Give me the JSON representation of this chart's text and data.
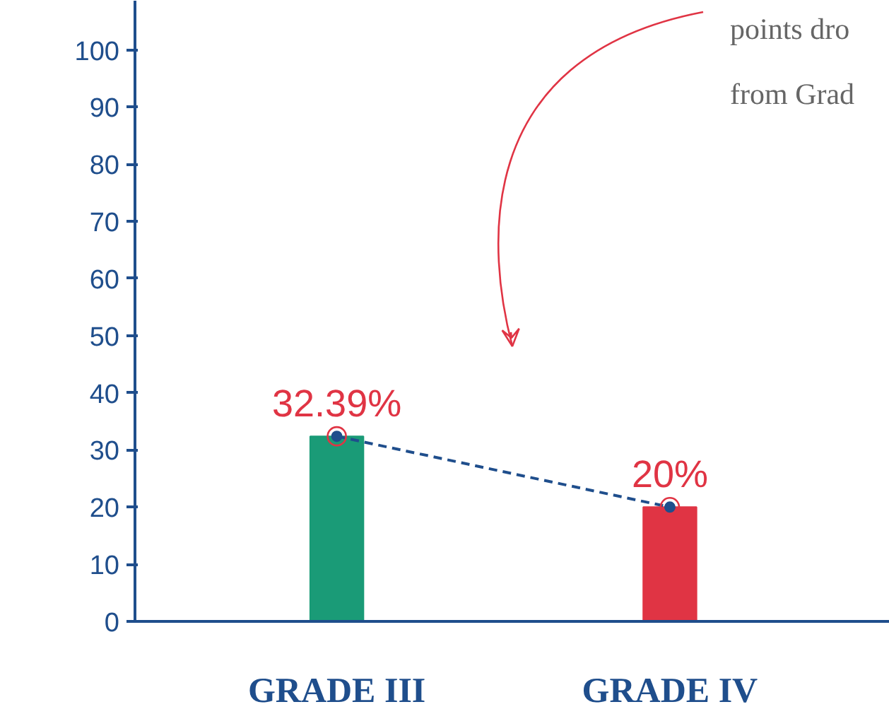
{
  "chart_data": {
    "type": "bar",
    "categories": [
      "GRADE III",
      "GRADE IV"
    ],
    "series": [
      {
        "colors": [
          "#1a9b77",
          "#e03444"
        ],
        "values": [
          32.39,
          20
        ]
      },
      {
        "type": "line",
        "color": "#1f4e8c",
        "values": [
          32.39,
          20
        ],
        "line_style": "dashed",
        "marker": "circle"
      }
    ],
    "value_labels": [
      "32.39%",
      "20%"
    ],
    "ylim": [
      0,
      108.6
    ],
    "yticks": [
      0,
      10,
      20,
      30,
      40,
      50,
      60,
      70,
      80,
      90,
      100
    ],
    "grid": false,
    "annotations": [
      "points dro",
      "from Grad"
    ]
  }
}
